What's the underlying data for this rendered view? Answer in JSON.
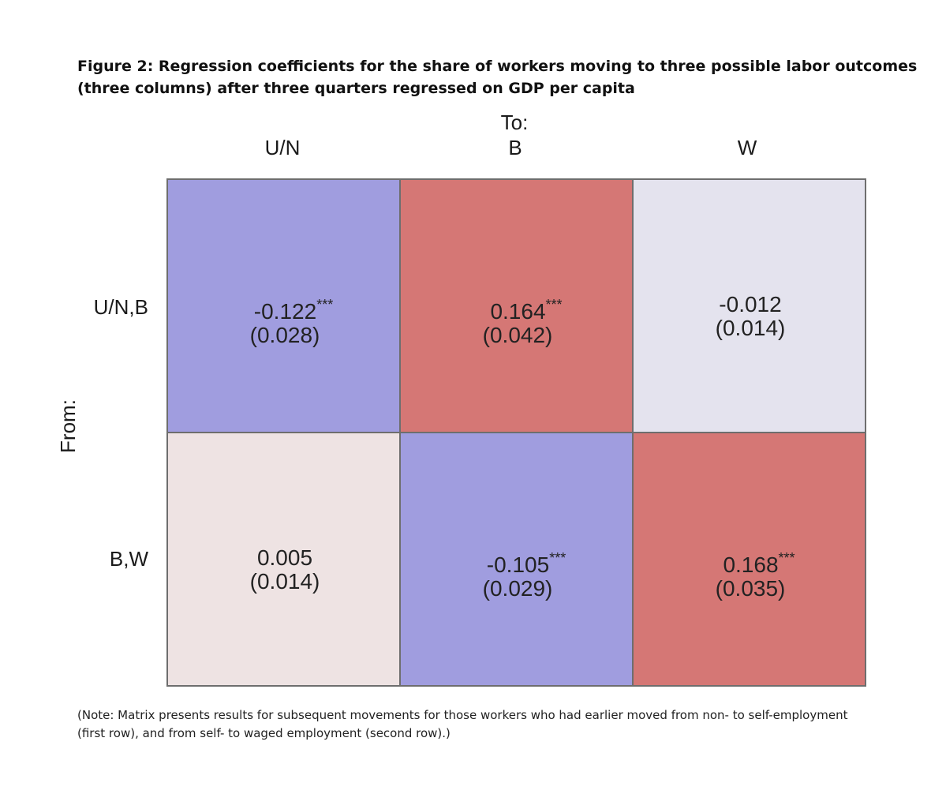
{
  "title_lines": [
    "Figure 2: Regression coefficients for the share of workers moving to three possible labor outcomes",
    "(three columns) after three quarters regressed on GDP per capita"
  ],
  "chart_data": {
    "type": "heatmap",
    "x_axis_title": "To:",
    "y_axis_title": "From:",
    "columns": [
      "U/N",
      "B",
      "W"
    ],
    "rows": [
      "U/N,B",
      "B,W"
    ],
    "values": [
      [
        -0.122,
        0.164,
        -0.012
      ],
      [
        0.005,
        -0.105,
        0.168
      ]
    ],
    "cells": [
      [
        {
          "coef": "-0.122",
          "stars": "***",
          "se": "(0.028)"
        },
        {
          "coef": "0.164",
          "stars": "***",
          "se": "(0.042)"
        },
        {
          "coef": "-0.012",
          "stars": "",
          "se": "(0.014)"
        }
      ],
      [
        {
          "coef": "0.005",
          "stars": "",
          "se": "(0.014)"
        },
        {
          "coef": "-0.105",
          "stars": "***",
          "se": "(0.029)"
        },
        {
          "coef": "0.168",
          "stars": "***",
          "se": "(0.035)"
        }
      ]
    ],
    "colors": {
      "negative_strong": "#a09ddf",
      "negative_weak": "#e4e3ee",
      "positive_strong": "#d57775",
      "positive_weak": "#eee3e3"
    }
  },
  "note_lines": [
    "(Note: Matrix presents results for subsequent movements for those workers who had earlier moved from non- to self-employment",
    "(first row), and from self- to waged employment (second row).)"
  ]
}
